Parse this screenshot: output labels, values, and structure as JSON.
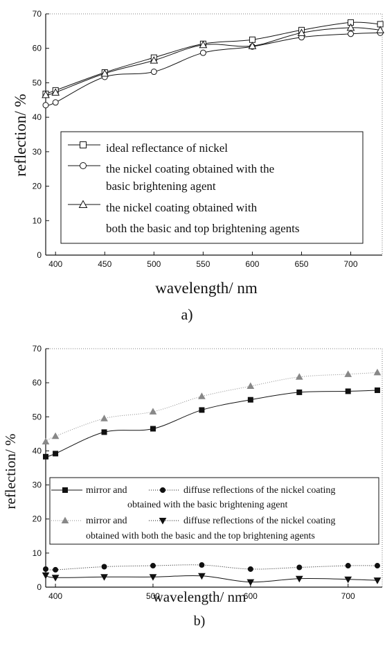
{
  "chart_data": [
    {
      "type": "line",
      "panel_label": "a)",
      "xlabel": "wavelength/ nm",
      "ylabel": "reflection/ %",
      "xlim": [
        390,
        732
      ],
      "ylim": [
        0,
        70
      ],
      "xticks": [
        400,
        450,
        500,
        550,
        600,
        650,
        700
      ],
      "yticks": [
        0,
        10,
        20,
        30,
        40,
        50,
        60,
        70
      ],
      "grid": false,
      "legend_position": "center",
      "series": [
        {
          "name": "ideal reflectance of nickel",
          "marker": "square",
          "x": [
            390,
            400,
            450,
            500,
            550,
            600,
            650,
            700,
            730
          ],
          "y": [
            46.8,
            47.8,
            53.0,
            57.3,
            61.3,
            62.5,
            65.3,
            67.5,
            67.0
          ]
        },
        {
          "name": "the nickel coating obtained with the basic brightening agent",
          "marker": "circle",
          "x": [
            390,
            400,
            450,
            500,
            550,
            600,
            650,
            700,
            730
          ],
          "y": [
            43.5,
            44.3,
            51.7,
            53.2,
            58.7,
            60.5,
            63.2,
            64.2,
            64.5
          ]
        },
        {
          "name": "the nickel coating obtained with both the basic and top brightening agents",
          "marker": "triangle",
          "x": [
            390,
            400,
            450,
            500,
            550,
            600,
            650,
            700,
            730
          ],
          "y": [
            46.5,
            47.2,
            52.7,
            56.5,
            61.0,
            60.7,
            64.5,
            66.0,
            65.3
          ]
        }
      ],
      "legend_lines": [
        "ideal reflectance of nickel",
        "the nickel coating obtained with the",
        "basic brightening agent",
        "the nickel coating obtained with",
        "both the basic and top brightening agents"
      ]
    },
    {
      "type": "line",
      "panel_label": "b)",
      "xlabel": "wavelength/ nm",
      "ylabel": "reflection/ %",
      "xlim": [
        390,
        735
      ],
      "ylim": [
        0,
        70
      ],
      "xticks": [
        400,
        500,
        600,
        700
      ],
      "yticks": [
        0,
        10,
        20,
        30,
        40,
        50,
        60,
        70
      ],
      "grid": false,
      "legend_position": "center",
      "series": [
        {
          "name": "mirror",
          "marker": "square-filled",
          "color": "#111111",
          "x": [
            390,
            400,
            450,
            500,
            550,
            600,
            650,
            700,
            730
          ],
          "y": [
            38.3,
            39.2,
            45.5,
            46.5,
            52.0,
            55.0,
            57.2,
            57.5,
            57.8
          ]
        },
        {
          "name": "diffuse",
          "marker": "circle-filled",
          "color": "#111111",
          "x": [
            390,
            400,
            450,
            500,
            550,
            600,
            650,
            700,
            730
          ],
          "y": [
            5.3,
            5.1,
            6.0,
            6.3,
            6.5,
            5.3,
            5.8,
            6.3,
            6.3
          ]
        },
        {
          "name": "mirror",
          "marker": "triangle-up-filled",
          "color": "#888888",
          "x": [
            390,
            400,
            450,
            500,
            550,
            600,
            650,
            700,
            730
          ],
          "y": [
            42.7,
            44.3,
            49.5,
            51.5,
            56.0,
            59.0,
            61.7,
            62.5,
            63.0
          ]
        },
        {
          "name": "diffuse",
          "marker": "triangle-down-filled",
          "color": "#111111",
          "x": [
            390,
            400,
            450,
            500,
            550,
            600,
            650,
            700,
            730
          ],
          "y": [
            3.5,
            2.8,
            3.0,
            3.0,
            3.3,
            1.5,
            2.5,
            2.3,
            2.0
          ]
        }
      ],
      "legend_rows": [
        {
          "left": "mirror and",
          "right": "diffuse reflections of the nickel coating",
          "second": "obtained with the basic brightening agent"
        },
        {
          "left": "mirror and",
          "right": "diffuse reflections of the nickel coating",
          "second": "obtained with both the basic and the top brightening agents"
        }
      ]
    }
  ]
}
